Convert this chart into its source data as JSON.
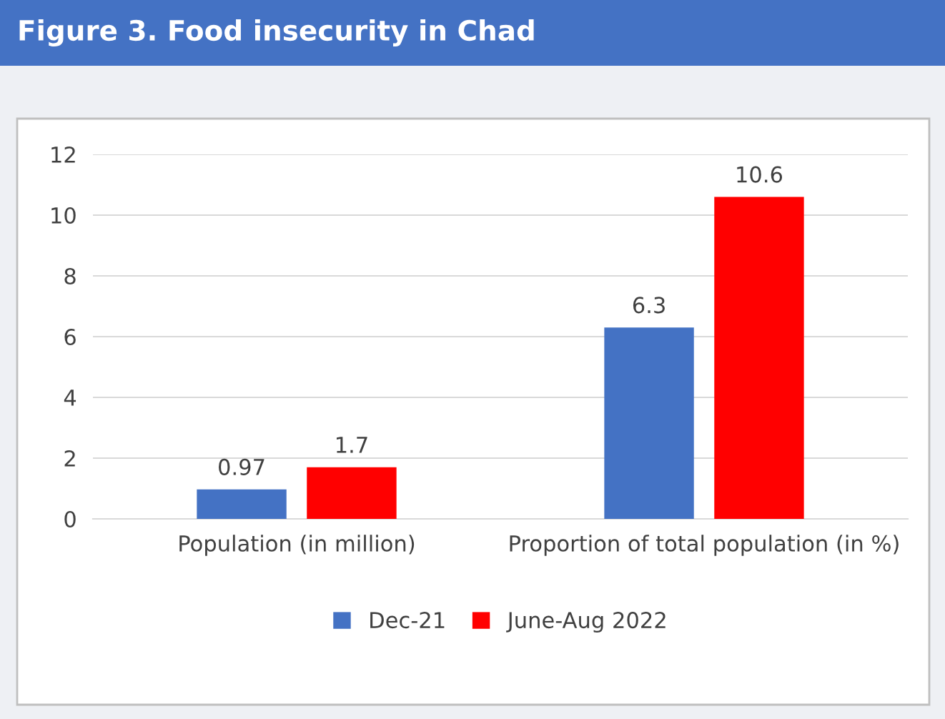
{
  "chart_data": {
    "type": "bar",
    "title": "Figure 3. Food insecurity in Chad",
    "categories": [
      "Population (in million)",
      "Proportion of total population (in %)"
    ],
    "series": [
      {
        "name": "Dec-21",
        "color": "#4472c4",
        "values": [
          0.97,
          6.3
        ]
      },
      {
        "name": "June-Aug 2022",
        "color": "#ff0000",
        "values": [
          1.7,
          10.6
        ]
      }
    ],
    "ylim": [
      0,
      12
    ],
    "yticks": [
      0,
      2,
      4,
      6,
      8,
      10,
      12
    ],
    "grid": "y",
    "legend": "bottom",
    "data_labels": true
  }
}
